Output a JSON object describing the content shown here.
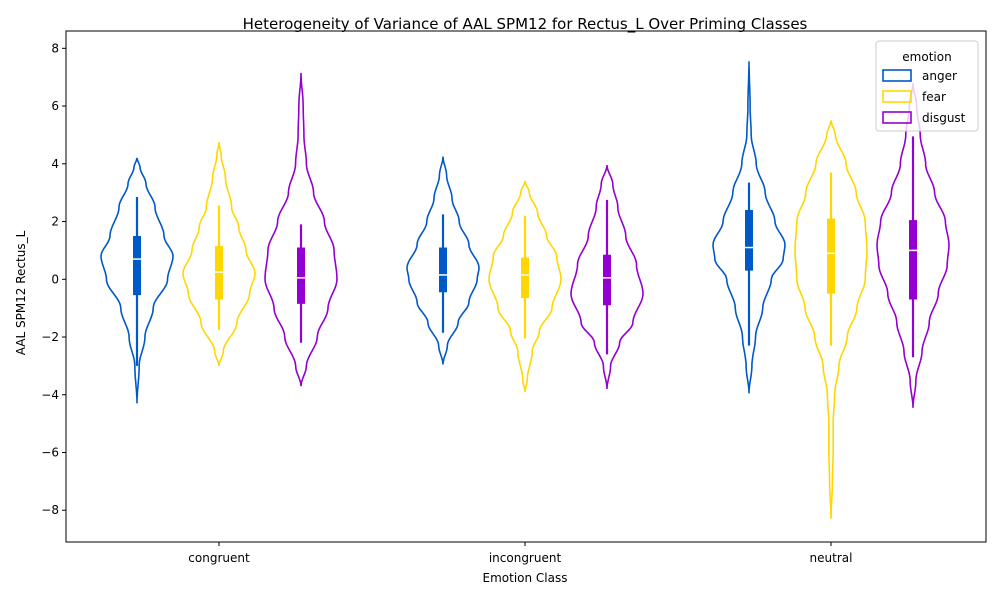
{
  "chart_data": {
    "type": "violin",
    "title": "Heterogeneity of Variance of AAL SPM12 for Rectus_L Over Priming Classes",
    "xlabel": "Emotion Class",
    "ylabel": "AAL SPM12 Rectus_L",
    "categories": [
      "congruent",
      "incongruent",
      "neutral"
    ],
    "ylim": [
      -9.1,
      8.6
    ],
    "yticks": [
      -8,
      -6,
      -4,
      -2,
      0,
      2,
      4,
      6,
      8
    ],
    "legend": {
      "title": "emotion",
      "position": "top-right"
    },
    "series": [
      {
        "name": "anger",
        "color": "#0059c8",
        "stats": [
          {
            "min": -4.3,
            "max": 4.2,
            "whisker_low": -3.0,
            "whisker_high": 2.85,
            "q1": -0.55,
            "median": 0.7,
            "q3": 1.5,
            "density": [
              [
                -4.3,
                0.0
              ],
              [
                -3.0,
                0.06
              ],
              [
                -2.0,
                0.22
              ],
              [
                -1.0,
                0.45
              ],
              [
                0.0,
                0.85
              ],
              [
                0.8,
                1.0
              ],
              [
                1.5,
                0.75
              ],
              [
                2.5,
                0.5
              ],
              [
                3.3,
                0.25
              ],
              [
                3.9,
                0.08
              ],
              [
                4.2,
                0.0
              ]
            ]
          },
          {
            "min": -2.95,
            "max": 4.25,
            "whisker_low": -1.85,
            "whisker_high": 2.25,
            "q1": -0.45,
            "median": 0.15,
            "q3": 1.1,
            "density": [
              [
                -2.95,
                0.0
              ],
              [
                -2.3,
                0.12
              ],
              [
                -1.5,
                0.42
              ],
              [
                -0.8,
                0.72
              ],
              [
                0.0,
                0.95
              ],
              [
                0.4,
                1.0
              ],
              [
                1.2,
                0.72
              ],
              [
                2.0,
                0.45
              ],
              [
                2.8,
                0.25
              ],
              [
                3.6,
                0.1
              ],
              [
                4.25,
                0.0
              ]
            ]
          },
          {
            "min": -3.95,
            "max": 7.55,
            "whisker_low": -2.3,
            "whisker_high": 3.35,
            "q1": 0.3,
            "median": 1.1,
            "q3": 2.4,
            "density": [
              [
                -3.95,
                0.0
              ],
              [
                -3.0,
                0.08
              ],
              [
                -2.0,
                0.18
              ],
              [
                -1.0,
                0.38
              ],
              [
                0.0,
                0.62
              ],
              [
                0.7,
                0.95
              ],
              [
                1.2,
                1.0
              ],
              [
                2.0,
                0.72
              ],
              [
                3.0,
                0.45
              ],
              [
                4.0,
                0.2
              ],
              [
                5.0,
                0.06
              ],
              [
                6.0,
                0.03
              ],
              [
                7.55,
                0.0
              ]
            ]
          }
        ]
      },
      {
        "name": "fear",
        "color": "#ffd700",
        "stats": [
          {
            "min": -3.0,
            "max": 4.75,
            "whisker_low": -1.75,
            "whisker_high": 2.55,
            "q1": -0.7,
            "median": 0.25,
            "q3": 1.15,
            "density": [
              [
                -3.0,
                0.0
              ],
              [
                -2.5,
                0.12
              ],
              [
                -1.5,
                0.5
              ],
              [
                -0.5,
                0.85
              ],
              [
                0.2,
                1.0
              ],
              [
                1.0,
                0.75
              ],
              [
                1.8,
                0.55
              ],
              [
                2.5,
                0.35
              ],
              [
                3.5,
                0.18
              ],
              [
                4.3,
                0.06
              ],
              [
                4.75,
                0.0
              ]
            ]
          },
          {
            "min": -3.9,
            "max": 3.4,
            "whisker_low": -2.05,
            "whisker_high": 2.2,
            "q1": -0.65,
            "median": 0.15,
            "q3": 0.75,
            "density": [
              [
                -3.9,
                0.0
              ],
              [
                -3.5,
                0.06
              ],
              [
                -2.5,
                0.2
              ],
              [
                -1.8,
                0.4
              ],
              [
                -1.0,
                0.75
              ],
              [
                0.0,
                1.0
              ],
              [
                0.8,
                0.88
              ],
              [
                1.5,
                0.6
              ],
              [
                2.3,
                0.35
              ],
              [
                3.0,
                0.12
              ],
              [
                3.4,
                0.0
              ]
            ]
          },
          {
            "min": -8.3,
            "max": 5.5,
            "whisker_low": -2.3,
            "whisker_high": 3.7,
            "q1": -0.5,
            "median": 0.9,
            "q3": 2.1,
            "density": [
              [
                -8.3,
                0.0
              ],
              [
                -7.0,
                0.04
              ],
              [
                -6.0,
                0.06
              ],
              [
                -5.0,
                0.06
              ],
              [
                -4.0,
                0.1
              ],
              [
                -3.0,
                0.22
              ],
              [
                -2.0,
                0.45
              ],
              [
                -1.0,
                0.72
              ],
              [
                0.0,
                0.95
              ],
              [
                1.0,
                1.0
              ],
              [
                2.0,
                0.95
              ],
              [
                3.0,
                0.7
              ],
              [
                4.0,
                0.42
              ],
              [
                5.0,
                0.12
              ],
              [
                5.5,
                0.0
              ]
            ]
          }
        ]
      },
      {
        "name": "disgust",
        "color": "#9400d3",
        "stats": [
          {
            "min": -3.7,
            "max": 7.15,
            "whisker_low": -2.2,
            "whisker_high": 1.9,
            "q1": -0.85,
            "median": 0.05,
            "q3": 1.1,
            "density": [
              [
                -3.7,
                0.0
              ],
              [
                -3.0,
                0.15
              ],
              [
                -2.0,
                0.45
              ],
              [
                -1.0,
                0.75
              ],
              [
                0.0,
                1.0
              ],
              [
                1.0,
                0.92
              ],
              [
                2.0,
                0.65
              ],
              [
                3.0,
                0.35
              ],
              [
                4.0,
                0.15
              ],
              [
                5.0,
                0.08
              ],
              [
                6.0,
                0.06
              ],
              [
                7.15,
                0.0
              ]
            ]
          },
          {
            "min": -3.8,
            "max": 3.95,
            "whisker_low": -2.6,
            "whisker_high": 2.75,
            "q1": -0.9,
            "median": 0.05,
            "q3": 0.85,
            "density": [
              [
                -3.8,
                0.0
              ],
              [
                -3.0,
                0.1
              ],
              [
                -2.2,
                0.35
              ],
              [
                -1.5,
                0.72
              ],
              [
                -0.5,
                1.0
              ],
              [
                0.5,
                0.82
              ],
              [
                1.5,
                0.52
              ],
              [
                2.5,
                0.3
              ],
              [
                3.3,
                0.16
              ],
              [
                3.95,
                0.0
              ]
            ]
          },
          {
            "min": -4.45,
            "max": 6.8,
            "whisker_low": -2.7,
            "whisker_high": 4.95,
            "q1": -0.7,
            "median": 1.0,
            "q3": 2.05,
            "density": [
              [
                -4.45,
                0.0
              ],
              [
                -3.5,
                0.08
              ],
              [
                -2.5,
                0.25
              ],
              [
                -1.5,
                0.45
              ],
              [
                -0.5,
                0.7
              ],
              [
                0.5,
                0.95
              ],
              [
                1.2,
                1.0
              ],
              [
                2.0,
                0.9
              ],
              [
                3.0,
                0.6
              ],
              [
                4.0,
                0.35
              ],
              [
                5.0,
                0.2
              ],
              [
                6.0,
                0.1
              ],
              [
                6.8,
                0.0
              ]
            ]
          }
        ]
      }
    ]
  }
}
